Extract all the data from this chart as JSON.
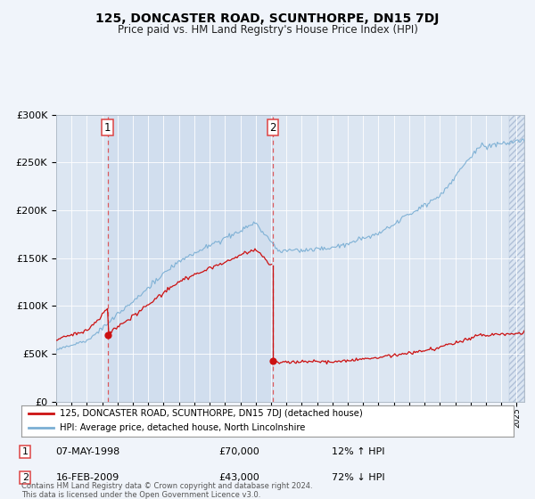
{
  "title": "125, DONCASTER ROAD, SCUNTHORPE, DN15 7DJ",
  "subtitle": "Price paid vs. HM Land Registry's House Price Index (HPI)",
  "background_color": "#f0f4fa",
  "plot_bg_color": "#dce6f2",
  "sale1_date": 1998.35,
  "sale1_price": 70000,
  "sale1_date_str": "07-MAY-1998",
  "sale1_hpi_pct": "12% ↑ HPI",
  "sale2_date": 2009.12,
  "sale2_price": 43000,
  "sale2_date_str": "16-FEB-2009",
  "sale2_hpi_pct": "72% ↓ HPI",
  "legend_line1": "125, DONCASTER ROAD, SCUNTHORPE, DN15 7DJ (detached house)",
  "legend_line2": "HPI: Average price, detached house, North Lincolnshire",
  "footer": "Contains HM Land Registry data © Crown copyright and database right 2024.\nThis data is licensed under the Open Government Licence v3.0.",
  "hpi_color": "#7bafd4",
  "price_color": "#cc1111",
  "dashed_color": "#dd4444",
  "ylim": [
    0,
    300000
  ],
  "xlim_start": 1995,
  "xlim_end": 2025.5,
  "title_fontsize": 10,
  "subtitle_fontsize": 8.5
}
